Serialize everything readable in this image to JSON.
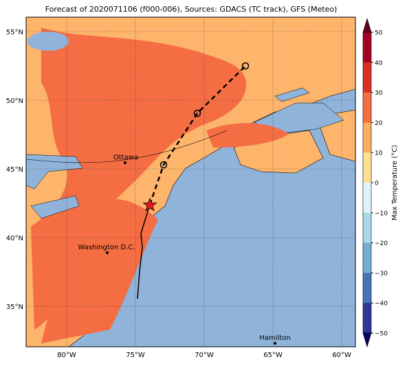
{
  "title": "Forecast of 2020071106 (f000-006), Sources: GDACS (TC track), GFS (Meteo)",
  "lat_labels": [
    "55°N",
    "50°N",
    "45°N",
    "40°N",
    "35°N"
  ],
  "lon_labels": [
    "80°W",
    "75°W",
    "70°W",
    "65°W",
    "60°W"
  ],
  "cities": [
    "Ottawa",
    "Washington D.C.",
    "Hamilton"
  ],
  "colorbar": {
    "label": "Max Temperature (°C)",
    "ticks": [
      "50",
      "40",
      "30",
      "20",
      "10",
      "0",
      "−10",
      "−20",
      "−30",
      "−40",
      "−50"
    ]
  }
}
